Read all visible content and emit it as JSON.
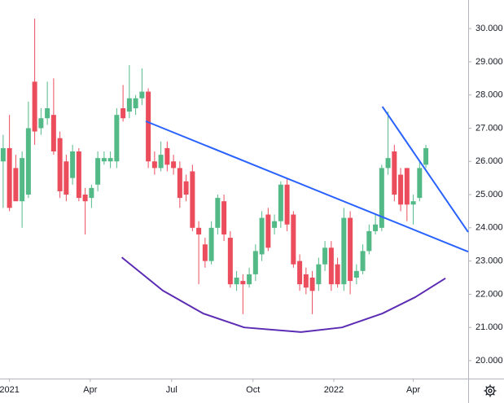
{
  "chart_data": {
    "type": "candlestick",
    "up_color": "#53b987",
    "down_color": "#eb4d5c",
    "x": [
      0,
      1,
      2,
      3,
      4,
      5,
      6,
      7,
      8,
      9,
      10,
      11,
      12,
      13,
      14,
      15,
      16,
      17,
      18,
      19,
      20,
      21,
      22,
      23,
      24,
      25,
      26,
      27,
      28,
      29,
      30,
      31,
      32,
      33,
      34,
      35,
      36,
      37,
      38,
      39,
      40,
      41,
      42,
      43,
      44,
      45,
      46,
      47,
      48,
      49,
      50,
      51,
      52,
      53,
      54,
      55,
      56,
      57,
      58,
      59,
      60,
      61,
      62,
      63,
      64,
      65,
      66,
      67
    ],
    "open": [
      26.0,
      26.4,
      25.8,
      24.8,
      25.0,
      28.4,
      27.0,
      27.3,
      27.4,
      26.7,
      26.0,
      25.5,
      26.3,
      25.0,
      24.9,
      25.3,
      26.0,
      26.0,
      26.0,
      27.6,
      27.5,
      27.6,
      27.9,
      28.1,
      26.0,
      25.8,
      26.4,
      26.0,
      25.8,
      25.4,
      25.7,
      24.0,
      23.5,
      23.0,
      24.0,
      24.8,
      23.7,
      22.3,
      22.4,
      22.3,
      22.6,
      23.2,
      24.4,
      24.0,
      24.2,
      25.3,
      24.4,
      23.0,
      22.6,
      22.5,
      22.3,
      22.9,
      23.4,
      22.9,
      22.3,
      24.3,
      22.5,
      22.7,
      23.3,
      23.9,
      24.0,
      25.8,
      26.3,
      25.6,
      25.8,
      24.7,
      24.9,
      25.9
    ],
    "high": [
      26.8,
      27.4,
      26.2,
      26.3,
      27.8,
      30.3,
      27.6,
      28.4,
      28.5,
      26.9,
      26.2,
      26.5,
      26.4,
      25.2,
      25.3,
      26.3,
      26.3,
      26.3,
      27.6,
      28.3,
      28.9,
      28.0,
      28.8,
      28.2,
      26.3,
      26.6,
      26.6,
      26.2,
      26.0,
      25.6,
      25.9,
      24.2,
      23.7,
      24.2,
      25.0,
      25.0,
      23.9,
      22.7,
      22.6,
      22.8,
      23.5,
      24.5,
      24.6,
      24.4,
      25.4,
      25.5,
      24.5,
      23.2,
      22.8,
      22.7,
      23.1,
      23.6,
      23.6,
      23.1,
      24.6,
      24.5,
      22.9,
      23.5,
      24.1,
      24.4,
      25.9,
      27.5,
      26.5,
      25.8,
      25.8,
      25.0,
      26.0,
      26.5
    ],
    "low": [
      24.6,
      24.5,
      24.8,
      24.0,
      24.9,
      26.5,
      26.8,
      27.1,
      26.2,
      24.9,
      24.8,
      25.3,
      24.8,
      23.8,
      24.6,
      25.1,
      25.9,
      25.8,
      25.8,
      27.2,
      27.3,
      27.4,
      27.7,
      25.8,
      25.6,
      25.7,
      25.7,
      25.6,
      24.6,
      24.8,
      23.9,
      22.3,
      22.8,
      22.9,
      23.8,
      23.6,
      22.2,
      22.1,
      21.4,
      22.2,
      22.4,
      23.0,
      23.3,
      23.8,
      24.0,
      23.9,
      22.8,
      22.1,
      22.0,
      21.4,
      22.1,
      22.7,
      22.1,
      22.2,
      22.1,
      22.0,
      22.3,
      22.6,
      23.2,
      23.8,
      23.9,
      25.6,
      24.8,
      24.5,
      24.2,
      24.1,
      24.8,
      25.8
    ],
    "close": [
      26.4,
      24.6,
      24.8,
      26.1,
      27.0,
      26.9,
      27.3,
      27.6,
      26.3,
      25.1,
      25.0,
      26.3,
      24.9,
      24.8,
      25.2,
      26.1,
      26.1,
      26.1,
      27.4,
      27.3,
      27.9,
      27.9,
      28.1,
      26.0,
      25.8,
      26.2,
      25.9,
      25.8,
      24.9,
      25.0,
      24.0,
      23.8,
      23.0,
      24.0,
      24.9,
      23.8,
      22.3,
      22.5,
      22.3,
      22.6,
      23.3,
      24.3,
      23.4,
      24.2,
      25.3,
      24.1,
      22.9,
      22.3,
      22.2,
      22.1,
      22.9,
      23.4,
      22.3,
      22.3,
      24.3,
      22.4,
      22.7,
      23.3,
      23.9,
      24.1,
      25.8,
      26.1,
      25.0,
      24.7,
      24.7,
      24.8,
      25.8,
      26.4
    ],
    "lines": [
      {
        "color": "#2962ff",
        "x": [
          22.6,
          73.7
        ],
        "y": [
          27.21,
          23.28
        ]
      },
      {
        "color": "#2962ff",
        "x": [
          60.1,
          73.7
        ],
        "y": [
          27.65,
          23.87
        ]
      },
      {
        "color": "#5b2bb3",
        "x": [
          18.8,
          25.3,
          31.7,
          38.2,
          47.2,
          53.7,
          60.1,
          65.3,
          70.1
        ],
        "y": [
          23.11,
          22.11,
          21.42,
          21.0,
          20.86,
          21.0,
          21.42,
          21.91,
          22.48
        ]
      }
    ],
    "xlim": [
      -0.5,
      73.7
    ],
    "xticks": [
      {
        "value": 1.0,
        "label": "2021"
      },
      {
        "value": 13.8,
        "label": "Apr"
      },
      {
        "value": 26.7,
        "label": "Jul"
      },
      {
        "value": 39.6,
        "label": "Oct"
      },
      {
        "value": 52.4,
        "label": "2022"
      },
      {
        "value": 65.0,
        "label": "Apr"
      }
    ],
    "ylim": [
      19.46,
      30.86
    ],
    "yticks": [
      {
        "value": 20,
        "label": "20.000"
      },
      {
        "value": 21,
        "label": "21.000"
      },
      {
        "value": 22,
        "label": "22.000"
      },
      {
        "value": 23,
        "label": "23.000"
      },
      {
        "value": 24,
        "label": "24.000"
      },
      {
        "value": 25,
        "label": "25.000"
      },
      {
        "value": 26,
        "label": "26.000"
      },
      {
        "value": 27,
        "label": "27.000"
      },
      {
        "value": 28,
        "label": "28.000"
      },
      {
        "value": 29,
        "label": "29.000"
      },
      {
        "value": 30,
        "label": "30.000"
      }
    ],
    "grid": false
  }
}
